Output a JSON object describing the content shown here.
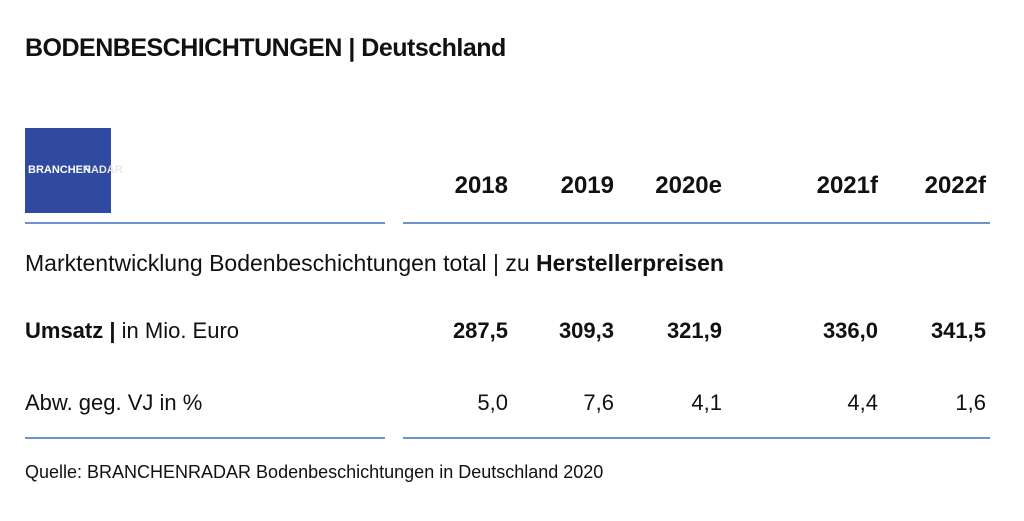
{
  "header": {
    "title": "BODENBESCHICHTUNGEN | Deutschland"
  },
  "logo": {
    "part1": "BRANCHEN",
    "part2": "RADAR"
  },
  "table": {
    "columns": [
      "2018",
      "2019",
      "2020e",
      "2021f",
      "2022f"
    ],
    "section": {
      "text": "Marktentwicklung Bodenbeschichtungen total | zu",
      "bold": "Herstellerpreisen"
    },
    "rows": [
      {
        "label_bold": "Umsatz |",
        "label": "in Mio. Euro",
        "values": [
          "287,5",
          "309,3",
          "321,9",
          "336,0",
          "341,5"
        ]
      },
      {
        "label": "Abw. geg. VJ in %",
        "values": [
          "5,0",
          "7,6",
          "4,1",
          "4,4",
          "1,6"
        ]
      }
    ]
  },
  "source": "Quelle: BRANCHENRADAR Bodenbeschichtungen in Deutschland 2020"
}
